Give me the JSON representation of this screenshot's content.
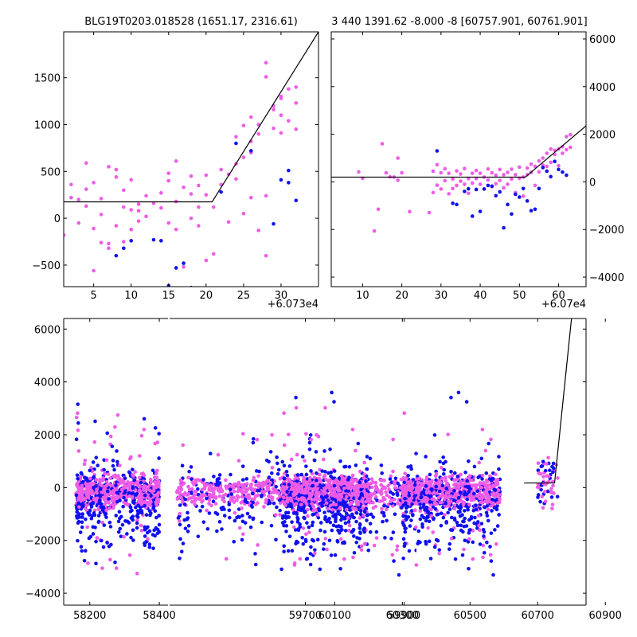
{
  "colors": {
    "magenta": "#ee5ce6",
    "blue": "#1010ee",
    "model": "#000000"
  },
  "chart_data": [
    {
      "type": "scatter",
      "title": "BLG19T0203.018528 (1651.17, 2316.61)",
      "x_offset_label": "+6.073e4",
      "xlim": [
        1,
        35
      ],
      "ylim": [
        -730,
        1990
      ],
      "xticks": [
        5,
        10,
        15,
        20,
        25,
        30
      ],
      "yticks": [
        -500,
        0,
        500,
        1000,
        1500
      ],
      "model_line": [
        [
          1,
          175
        ],
        [
          20.8,
          175
        ],
        [
          35,
          1990
        ]
      ],
      "series": [
        {
          "color": "magenta",
          "points": [
            [
              1,
              -180
            ],
            [
              2,
              220
            ],
            [
              2,
              360
            ],
            [
              3,
              200
            ],
            [
              3,
              -50
            ],
            [
              4,
              310
            ],
            [
              4,
              130
            ],
            [
              4,
              590
            ],
            [
              5,
              380
            ],
            [
              5,
              -110
            ],
            [
              5,
              -560
            ],
            [
              6,
              210
            ],
            [
              6,
              -260
            ],
            [
              6,
              40
            ],
            [
              7,
              550
            ],
            [
              7,
              -270
            ],
            [
              7,
              -320
            ],
            [
              8,
              520
            ],
            [
              8,
              -80
            ],
            [
              8,
              440
            ],
            [
              9,
              300
            ],
            [
              9,
              -250
            ],
            [
              9,
              120
            ],
            [
              10,
              90
            ],
            [
              10,
              -120
            ],
            [
              10,
              410
            ],
            [
              11,
              150
            ],
            [
              11,
              -30
            ],
            [
              11,
              80
            ],
            [
              12,
              240
            ],
            [
              12,
              20
            ],
            [
              13,
              160
            ],
            [
              14,
              110
            ],
            [
              14,
              270
            ],
            [
              15,
              400
            ],
            [
              15,
              480
            ],
            [
              15,
              -50
            ],
            [
              16,
              610
            ],
            [
              16,
              180
            ],
            [
              16,
              -120
            ],
            [
              17,
              330
            ],
            [
              17,
              -520
            ],
            [
              18,
              260
            ],
            [
              18,
              450
            ],
            [
              18,
              0
            ],
            [
              19,
              120
            ],
            [
              19,
              350
            ],
            [
              19,
              -80
            ],
            [
              20,
              460
            ],
            [
              20,
              -450
            ],
            [
              20,
              250
            ],
            [
              21,
              120
            ],
            [
              21,
              -380
            ],
            [
              22,
              520
            ],
            [
              22,
              360
            ],
            [
              23,
              470
            ],
            [
              23,
              -40
            ],
            [
              24,
              580
            ],
            [
              24,
              870
            ],
            [
              24,
              420
            ],
            [
              25,
              990
            ],
            [
              25,
              650
            ],
            [
              25,
              50
            ],
            [
              26,
              700
            ],
            [
              26,
              1080
            ],
            [
              26,
              820
            ],
            [
              26,
              220
            ],
            [
              27,
              900
            ],
            [
              27,
              1000
            ],
            [
              27,
              -130
            ],
            [
              28,
              1510
            ],
            [
              28,
              1660
            ],
            [
              28,
              240
            ],
            [
              28,
              -400
            ],
            [
              29,
              960
            ],
            [
              29,
              1200
            ],
            [
              29,
              1160
            ],
            [
              30,
              1100
            ],
            [
              30,
              1280
            ],
            [
              30,
              1300
            ],
            [
              30,
              910
            ],
            [
              31,
              1040
            ],
            [
              31,
              1380
            ],
            [
              32,
              1230
            ],
            [
              32,
              1400
            ],
            [
              32,
              950
            ]
          ]
        },
        {
          "color": "blue",
          "points": [
            [
              8,
              -400
            ],
            [
              9,
              -320
            ],
            [
              10,
              -240
            ],
            [
              13,
              -230
            ],
            [
              14,
              -240
            ],
            [
              15,
              -720
            ],
            [
              16,
              -530
            ],
            [
              17,
              -480
            ],
            [
              18,
              -740
            ],
            [
              20,
              -750
            ],
            [
              22,
              280
            ],
            [
              24,
              800
            ],
            [
              26,
              720
            ],
            [
              29,
              -60
            ],
            [
              30,
              410
            ],
            [
              31,
              510
            ],
            [
              31,
              380
            ],
            [
              32,
              190
            ]
          ]
        }
      ]
    },
    {
      "type": "scatter",
      "title": "3 440 1391.62 -8.000 -8 [60757.901, 60761.901]",
      "x_offset_label": "+6.07e4",
      "xlim": [
        2,
        67
      ],
      "ylim": [
        -4400,
        6300
      ],
      "xticks": [
        10,
        20,
        30,
        40,
        50,
        60
      ],
      "yticks": [
        -4000,
        -2000,
        0,
        2000,
        4000,
        6000
      ],
      "model_line": [
        [
          2,
          200
        ],
        [
          51.5,
          200
        ],
        [
          67,
          2350
        ]
      ],
      "series": [
        {
          "color": "magenta",
          "points": [
            [
              9,
              420
            ],
            [
              10,
              150
            ],
            [
              13,
              -2060
            ],
            [
              14,
              -1150
            ],
            [
              15,
              1600
            ],
            [
              16,
              380
            ],
            [
              17,
              210
            ],
            [
              18,
              200
            ],
            [
              19,
              1000
            ],
            [
              19,
              70
            ],
            [
              20,
              380
            ],
            [
              22,
              -1250
            ],
            [
              27,
              -1290
            ],
            [
              28,
              450
            ],
            [
              28,
              -450
            ],
            [
              29,
              720
            ],
            [
              29,
              -140
            ],
            [
              30,
              380
            ],
            [
              30,
              -300
            ],
            [
              31,
              550
            ],
            [
              31,
              50
            ],
            [
              32,
              360
            ],
            [
              32,
              -500
            ],
            [
              33,
              120
            ],
            [
              33,
              -280
            ],
            [
              34,
              460
            ],
            [
              34,
              -150
            ],
            [
              35,
              330
            ],
            [
              35,
              30
            ],
            [
              36,
              560
            ],
            [
              36,
              -100
            ],
            [
              37,
              140
            ],
            [
              37,
              -480
            ],
            [
              38,
              360
            ],
            [
              38,
              -50
            ],
            [
              39,
              480
            ],
            [
              39,
              140
            ],
            [
              40,
              360
            ],
            [
              40,
              -100
            ],
            [
              41,
              200
            ],
            [
              41,
              -300
            ],
            [
              42,
              540
            ],
            [
              42,
              80
            ],
            [
              43,
              380
            ],
            [
              43,
              -200
            ],
            [
              44,
              280
            ],
            [
              44,
              -80
            ],
            [
              45,
              520
            ],
            [
              45,
              60
            ],
            [
              46,
              300
            ],
            [
              46,
              -250
            ],
            [
              47,
              400
            ],
            [
              47,
              -100
            ],
            [
              48,
              530
            ],
            [
              48,
              120
            ],
            [
              49,
              300
            ],
            [
              49,
              -450
            ],
            [
              50,
              620
            ],
            [
              50,
              150
            ],
            [
              51,
              200
            ],
            [
              51,
              -600
            ],
            [
              52,
              580
            ],
            [
              52,
              300
            ],
            [
              53,
              740
            ],
            [
              53,
              400
            ],
            [
              54,
              650
            ],
            [
              54,
              -150
            ],
            [
              55,
              880
            ],
            [
              55,
              420
            ],
            [
              56,
              700
            ],
            [
              56,
              1000
            ],
            [
              57,
              1200
            ],
            [
              57,
              650
            ],
            [
              58,
              1380
            ],
            [
              58,
              820
            ],
            [
              59,
              1150
            ],
            [
              59,
              1320
            ],
            [
              60,
              1380
            ],
            [
              60,
              680
            ],
            [
              61,
              1200
            ],
            [
              61,
              1480
            ],
            [
              62,
              1900
            ],
            [
              62,
              1350
            ],
            [
              63,
              1980
            ],
            [
              63,
              1450
            ]
          ]
        },
        {
          "color": "blue",
          "points": [
            [
              29,
              1300
            ],
            [
              33,
              -900
            ],
            [
              34,
              -950
            ],
            [
              36,
              -400
            ],
            [
              37,
              -290
            ],
            [
              38,
              -1440
            ],
            [
              39,
              -320
            ],
            [
              40,
              -1240
            ],
            [
              41,
              -300
            ],
            [
              42,
              -150
            ],
            [
              43,
              -180
            ],
            [
              44,
              -580
            ],
            [
              45,
              -420
            ],
            [
              46,
              -1930
            ],
            [
              47,
              -950
            ],
            [
              48,
              -1350
            ],
            [
              49,
              -520
            ],
            [
              50,
              -640
            ],
            [
              51,
              -280
            ],
            [
              52,
              -800
            ],
            [
              53,
              -1210
            ],
            [
              54,
              -1150
            ],
            [
              55,
              -280
            ],
            [
              56,
              600
            ],
            [
              57,
              450
            ],
            [
              58,
              220
            ],
            [
              59,
              860
            ],
            [
              60,
              520
            ],
            [
              61,
              410
            ],
            [
              62,
              280
            ]
          ]
        }
      ]
    },
    {
      "type": "scatter",
      "title": "",
      "ylim": [
        -4450,
        6400
      ],
      "yticks": [
        -4000,
        -2000,
        0,
        2000,
        4000,
        6000
      ],
      "segments": [
        {
          "xlim": [
            58125,
            58425
          ],
          "xticks": [
            58200,
            58400
          ],
          "season": [
            58160,
            58400
          ]
        },
        {
          "xlim": [
            59425,
            59925
          ],
          "xticks": [
            59700,
            59900
          ],
          "season": [
            59440,
            59925
          ]
        },
        {
          "xlim": [
            59925,
            60843
          ],
          "xticks": [
            60100,
            60300,
            60500,
            60700,
            60900
          ],
          "seasons": [
            [
              59945,
              60200
            ],
            [
              60300,
              60590
            ],
            [
              60700,
              60760
            ]
          ]
        }
      ],
      "model_line": [
        [
          60660,
          175
        ],
        [
          60750,
          175
        ],
        [
          60800,
          6400
        ]
      ]
    }
  ]
}
